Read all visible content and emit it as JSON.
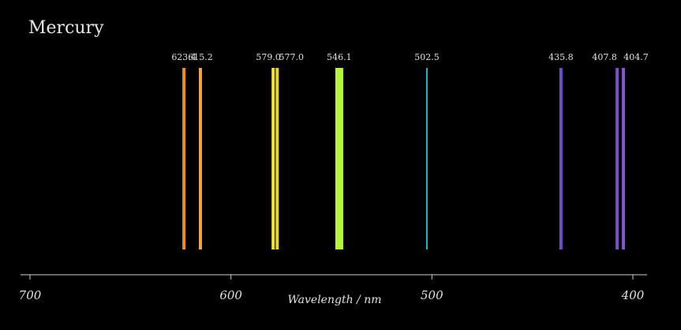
{
  "chart_data": {
    "type": "spectrum",
    "title": "Mercury",
    "xlabel": "Wavelength / nm",
    "xlim": [
      700,
      400
    ],
    "xticks": [
      700,
      600,
      500,
      400
    ],
    "grid": false,
    "legend": "none",
    "background": "#000000",
    "lines": [
      {
        "wavelength": 623.4,
        "label": "623.4",
        "color": "#f28a1c"
      },
      {
        "wavelength": 615.2,
        "label": "615.2",
        "color": "#f7a43a"
      },
      {
        "wavelength": 579.0,
        "label": "579.0",
        "color": "#f2e22a"
      },
      {
        "wavelength": 577.0,
        "label": "577.0",
        "color": "#e8d51e"
      },
      {
        "wavelength": 546.1,
        "label": "546.1",
        "color": "#b8f53a"
      },
      {
        "wavelength": 502.5,
        "label": "502.5",
        "color": "#1cb6c8"
      },
      {
        "wavelength": 435.8,
        "label": "435.8",
        "color": "#6f4fc8"
      },
      {
        "wavelength": 407.8,
        "label": "407.8",
        "color": "#7d50c8"
      },
      {
        "wavelength": 404.7,
        "label": "404.7",
        "color": "#8455cc"
      }
    ]
  }
}
